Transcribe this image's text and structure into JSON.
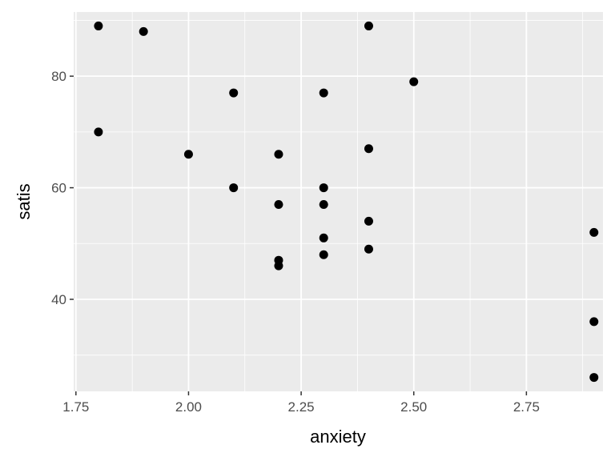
{
  "chart_data": {
    "type": "scatter",
    "title": "",
    "xlabel": "anxiety",
    "ylabel": "satis",
    "xlim": [
      1.745,
      2.92
    ],
    "ylim": [
      23.5,
      91.5
    ],
    "x_ticks": [
      1.75,
      2.0,
      2.25,
      2.5,
      2.75
    ],
    "x_tick_labels": [
      "1.75",
      "2.00",
      "2.25",
      "2.50",
      "2.75"
    ],
    "y_ticks": [
      40,
      60,
      80
    ],
    "y_tick_labels": [
      "40",
      "60",
      "80"
    ],
    "grid": true,
    "colors": {
      "panel": "#ebebeb",
      "grid": "#ffffff",
      "point": "#000000"
    },
    "points": [
      {
        "x": 1.8,
        "y": 89
      },
      {
        "x": 1.9,
        "y": 88
      },
      {
        "x": 2.4,
        "y": 89
      },
      {
        "x": 2.5,
        "y": 79
      },
      {
        "x": 2.1,
        "y": 77
      },
      {
        "x": 2.3,
        "y": 77
      },
      {
        "x": 1.8,
        "y": 70
      },
      {
        "x": 2.4,
        "y": 67
      },
      {
        "x": 2.0,
        "y": 66
      },
      {
        "x": 2.2,
        "y": 66
      },
      {
        "x": 2.1,
        "y": 60
      },
      {
        "x": 2.3,
        "y": 60
      },
      {
        "x": 2.2,
        "y": 57
      },
      {
        "x": 2.3,
        "y": 57
      },
      {
        "x": 2.4,
        "y": 54
      },
      {
        "x": 2.9,
        "y": 52
      },
      {
        "x": 2.3,
        "y": 51
      },
      {
        "x": 2.4,
        "y": 49
      },
      {
        "x": 2.3,
        "y": 48
      },
      {
        "x": 2.2,
        "y": 47
      },
      {
        "x": 2.2,
        "y": 46
      },
      {
        "x": 2.9,
        "y": 36
      },
      {
        "x": 2.9,
        "y": 26
      }
    ]
  }
}
